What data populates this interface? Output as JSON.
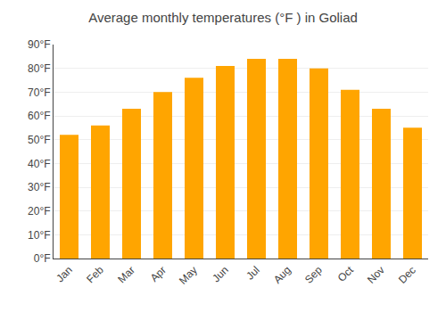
{
  "chart_data": {
    "type": "bar",
    "title": "Average monthly temperatures (°F ) in Goliad",
    "categories": [
      "Jan",
      "Feb",
      "Mar",
      "Apr",
      "May",
      "Jun",
      "Jul",
      "Aug",
      "Sep",
      "Oct",
      "Nov",
      "Dec"
    ],
    "values": [
      52,
      56,
      63,
      70,
      76,
      81,
      84,
      84,
      80,
      71,
      63,
      55
    ],
    "color": "#FFA500",
    "ylim": [
      0,
      90
    ],
    "yticks": [
      {
        "value": 0,
        "label": "0°F"
      },
      {
        "value": 10,
        "label": "10°F"
      },
      {
        "value": 20,
        "label": "20°F"
      },
      {
        "value": 30,
        "label": "30°F"
      },
      {
        "value": 40,
        "label": "40°F"
      },
      {
        "value": 50,
        "label": "50°F"
      },
      {
        "value": 60,
        "label": "60°F"
      },
      {
        "value": 70,
        "label": "70°F"
      },
      {
        "value": 80,
        "label": "80°F"
      },
      {
        "value": 90,
        "label": "90°F"
      }
    ],
    "grid": true
  }
}
